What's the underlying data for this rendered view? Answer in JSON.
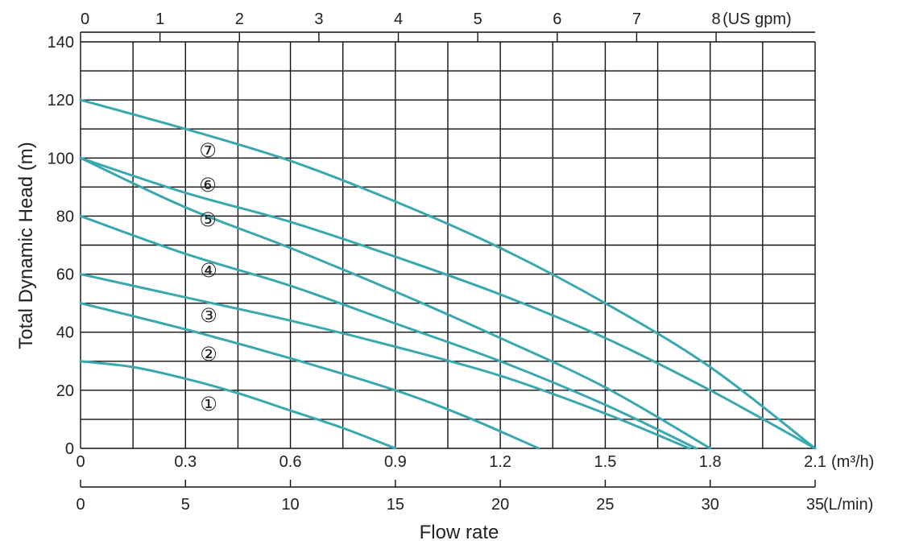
{
  "chart_data": {
    "type": "line",
    "xlabel": "Flow rate",
    "ylabel": "Total Dynamic Head (m)",
    "x_unit": "m³/h",
    "xlim": [
      0,
      2.1
    ],
    "ylim": [
      0,
      140
    ],
    "grid": true,
    "line_color": "#3aa8b0",
    "y_ticks": [
      "0",
      "20",
      "40",
      "60",
      "80",
      "100",
      "120",
      "140"
    ],
    "y_tick_values": [
      0,
      20,
      40,
      60,
      80,
      100,
      120,
      140
    ],
    "x_ticks_m3h": [
      "0",
      "0.3",
      "0.6",
      "0.9",
      "1.2",
      "1.5",
      "1.8",
      "2.1"
    ],
    "x_unit_m3h": "(m³/h)",
    "x_ticks_lmin": [
      "0",
      "5",
      "10",
      "15",
      "20",
      "25",
      "30",
      "35"
    ],
    "x_unit_lmin": "(L/min)",
    "x_ticks_gpm": [
      "0",
      "1",
      "2",
      "3",
      "4",
      "5",
      "6",
      "7",
      "8"
    ],
    "x_unit_gpm": "(US gpm)",
    "series": [
      {
        "name": "①",
        "x": [
          0,
          0.15,
          0.3,
          0.45,
          0.6,
          0.75,
          0.9
        ],
        "y": [
          30,
          28,
          24,
          19,
          13,
          7,
          0
        ]
      },
      {
        "name": "②",
        "x": [
          0,
          0.3,
          0.6,
          0.9,
          1.1,
          1.31
        ],
        "y": [
          50,
          41,
          31,
          20,
          11,
          0
        ]
      },
      {
        "name": "③",
        "x": [
          0,
          0.3,
          0.6,
          0.9,
          1.2,
          1.5,
          1.74
        ],
        "y": [
          60,
          52,
          44,
          35,
          25,
          12,
          0
        ]
      },
      {
        "name": "④",
        "x": [
          0,
          0.3,
          0.6,
          0.9,
          1.2,
          1.5,
          1.76
        ],
        "y": [
          80,
          67,
          56,
          43,
          30,
          15,
          0
        ]
      },
      {
        "name": "⑤",
        "x": [
          0,
          0.3,
          0.6,
          0.9,
          1.2,
          1.5,
          1.8
        ],
        "y": [
          100,
          83,
          69,
          54,
          38,
          21,
          0
        ]
      },
      {
        "name": "⑥",
        "x": [
          0,
          0.3,
          0.6,
          0.9,
          1.2,
          1.5,
          1.8,
          2.1
        ],
        "y": [
          100,
          88,
          78,
          66,
          53,
          38,
          20,
          0
        ]
      },
      {
        "name": "⑦",
        "x": [
          0,
          0.3,
          0.6,
          0.9,
          1.2,
          1.5,
          1.8,
          2.1
        ],
        "y": [
          120,
          110,
          99,
          85,
          69,
          50,
          28,
          0
        ]
      }
    ]
  }
}
